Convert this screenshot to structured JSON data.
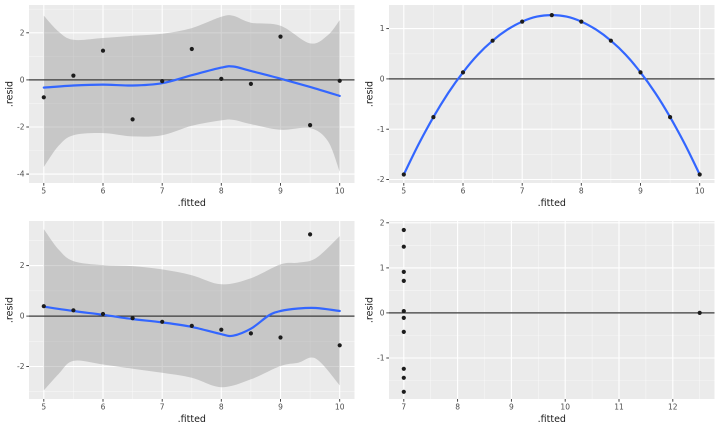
{
  "figure": {
    "description": "2x2 grid of ggplot-style residual diagnostic plots",
    "x_axis_title": ".fitted",
    "y_axis_title": ".resid"
  },
  "style": {
    "figure_bg": "#FFFFFF",
    "panel_bg": "#EBEBEB",
    "grid_major": "#FFFFFF",
    "grid_minor": "#FFFFFF",
    "grid_minor_opacity": 0.55,
    "ribbon_fill": "rgba(150,150,150,0.42)",
    "smooth_color": "#3366FF",
    "point_color": "#1C1C1C",
    "zero_line_color": "#3A3A3A",
    "tick_label_color": "#4D4D4D",
    "tick_mark_color": "#333333",
    "axis_title_color": "#1A1A1A"
  },
  "chart_data": [
    {
      "id": "residuals-vs-fitted-1",
      "position": "top-left",
      "type": "scatter",
      "xlabel": ".fitted",
      "ylabel": ".resid",
      "xlim": [
        4.75,
        10.25
      ],
      "ylim": [
        -4.38,
        3.18
      ],
      "xticks": [
        5,
        6,
        7,
        8,
        9,
        10
      ],
      "yticks": [
        -4,
        -2,
        0,
        2
      ],
      "hline": 0,
      "points": [
        [
          5,
          -0.74
        ],
        [
          5.5,
          0.18
        ],
        [
          6,
          1.24
        ],
        [
          6.5,
          -1.68
        ],
        [
          7,
          -0.05
        ],
        [
          7.5,
          1.31
        ],
        [
          8,
          0.04
        ],
        [
          8.5,
          -0.17
        ],
        [
          9,
          1.84
        ],
        [
          9.5,
          -1.92
        ],
        [
          10,
          -0.04
        ]
      ],
      "smooth": [
        [
          5,
          -0.33
        ],
        [
          5.5,
          -0.24
        ],
        [
          6,
          -0.2
        ],
        [
          6.5,
          -0.24
        ],
        [
          7,
          -0.14
        ],
        [
          7.5,
          0.2
        ],
        [
          8,
          0.52
        ],
        [
          8.2,
          0.57
        ],
        [
          8.5,
          0.38
        ],
        [
          9,
          0.05
        ],
        [
          9.5,
          -0.3
        ],
        [
          10,
          -0.68
        ]
      ],
      "ribbon": {
        "x": [
          5,
          5.25,
          5.5,
          6,
          6.5,
          7,
          7.5,
          8,
          8.2,
          8.5,
          9,
          9.5,
          9.8,
          10
        ],
        "upper": [
          2.73,
          2.05,
          1.7,
          1.78,
          1.87,
          1.96,
          2.2,
          2.68,
          2.72,
          2.43,
          2.3,
          1.55,
          1.9,
          2.54
        ],
        "lower": [
          -3.7,
          -2.8,
          -2.35,
          -2.26,
          -2.4,
          -2.35,
          -1.95,
          -1.72,
          -1.7,
          -1.88,
          -2.12,
          -2.05,
          -2.6,
          -3.9
        ]
      }
    },
    {
      "id": "residuals-vs-fitted-2",
      "position": "top-right",
      "type": "scatter",
      "xlabel": ".fitted",
      "ylabel": ".resid",
      "xlim": [
        4.75,
        10.25
      ],
      "ylim": [
        -2.07,
        1.47
      ],
      "xticks": [
        5,
        6,
        7,
        8,
        9,
        10
      ],
      "yticks": [
        -2,
        -1,
        0,
        1
      ],
      "hline": 0,
      "points": [
        [
          5,
          -1.9
        ],
        [
          5.5,
          -0.76
        ],
        [
          6,
          0.13
        ],
        [
          6.5,
          0.76
        ],
        [
          7,
          1.14
        ],
        [
          7.5,
          1.27
        ],
        [
          8,
          1.14
        ],
        [
          8.5,
          0.76
        ],
        [
          9,
          0.13
        ],
        [
          9.5,
          -0.76
        ],
        [
          10,
          -1.9
        ]
      ],
      "smooth": [
        [
          5,
          -1.9
        ],
        [
          5.25,
          -1.3
        ],
        [
          5.5,
          -0.76
        ],
        [
          5.75,
          -0.28
        ],
        [
          6,
          0.13
        ],
        [
          6.25,
          0.48
        ],
        [
          6.5,
          0.76
        ],
        [
          6.75,
          0.98
        ],
        [
          7,
          1.14
        ],
        [
          7.25,
          1.24
        ],
        [
          7.5,
          1.27
        ],
        [
          7.75,
          1.24
        ],
        [
          8,
          1.14
        ],
        [
          8.25,
          0.98
        ],
        [
          8.5,
          0.76
        ],
        [
          8.75,
          0.48
        ],
        [
          9,
          0.13
        ],
        [
          9.25,
          -0.28
        ],
        [
          9.5,
          -0.76
        ],
        [
          9.75,
          -1.3
        ],
        [
          10,
          -1.9
        ]
      ],
      "ribbon": null
    },
    {
      "id": "residuals-vs-fitted-3",
      "position": "bottom-left",
      "type": "scatter",
      "xlabel": ".fitted",
      "ylabel": ".resid",
      "xlim": [
        4.75,
        10.25
      ],
      "ylim": [
        -3.29,
        3.77
      ],
      "xticks": [
        5,
        6,
        7,
        8,
        9,
        10
      ],
      "yticks": [
        -2,
        0,
        2
      ],
      "hline": 0,
      "points": [
        [
          5,
          0.39
        ],
        [
          5.5,
          0.23
        ],
        [
          6,
          0.08
        ],
        [
          6.5,
          -0.08
        ],
        [
          7,
          -0.23
        ],
        [
          7.5,
          -0.39
        ],
        [
          8,
          -0.54
        ],
        [
          8.5,
          -0.69
        ],
        [
          9,
          -0.85
        ],
        [
          9.5,
          3.24
        ],
        [
          10,
          -1.16
        ]
      ],
      "smooth": [
        [
          5,
          0.37
        ],
        [
          5.5,
          0.2
        ],
        [
          6,
          0.05
        ],
        [
          6.5,
          -0.12
        ],
        [
          7,
          -0.25
        ],
        [
          7.5,
          -0.43
        ],
        [
          8,
          -0.72
        ],
        [
          8.2,
          -0.78
        ],
        [
          8.5,
          -0.5
        ],
        [
          8.8,
          0.02
        ],
        [
          9,
          0.2
        ],
        [
          9.3,
          0.3
        ],
        [
          9.6,
          0.32
        ],
        [
          10,
          0.2
        ]
      ],
      "ribbon": {
        "x": [
          5,
          5.25,
          5.5,
          6,
          6.5,
          7,
          7.5,
          8,
          8.5,
          9,
          9.3,
          9.6,
          10
        ],
        "upper": [
          3.45,
          2.64,
          2.18,
          2.02,
          1.98,
          1.85,
          1.62,
          1.26,
          1.5,
          2.05,
          2.12,
          2.3,
          3.17
        ],
        "lower": [
          -2.95,
          -2.3,
          -1.78,
          -1.92,
          -2.09,
          -2.25,
          -2.45,
          -2.82,
          -2.51,
          -1.98,
          -1.85,
          -1.69,
          -2.75
        ]
      }
    },
    {
      "id": "residuals-vs-fitted-4",
      "position": "bottom-right",
      "type": "scatter",
      "xlabel": ".fitted",
      "ylabel": ".resid",
      "xlim": [
        6.725,
        12.775
      ],
      "ylim": [
        -1.91,
        2.04
      ],
      "xticks": [
        7,
        8,
        9,
        10,
        11,
        12
      ],
      "yticks": [
        -1,
        0,
        1,
        2
      ],
      "hline": 0,
      "points": [
        [
          7,
          1.84
        ],
        [
          7,
          1.47
        ],
        [
          7,
          0.91
        ],
        [
          7,
          0.71
        ],
        [
          7,
          0.04
        ],
        [
          7,
          -0.11
        ],
        [
          7,
          -0.42
        ],
        [
          7,
          -1.24
        ],
        [
          7,
          -1.44
        ],
        [
          7,
          -1.75
        ],
        [
          12.5,
          0
        ]
      ],
      "smooth": null,
      "ribbon": null
    }
  ]
}
